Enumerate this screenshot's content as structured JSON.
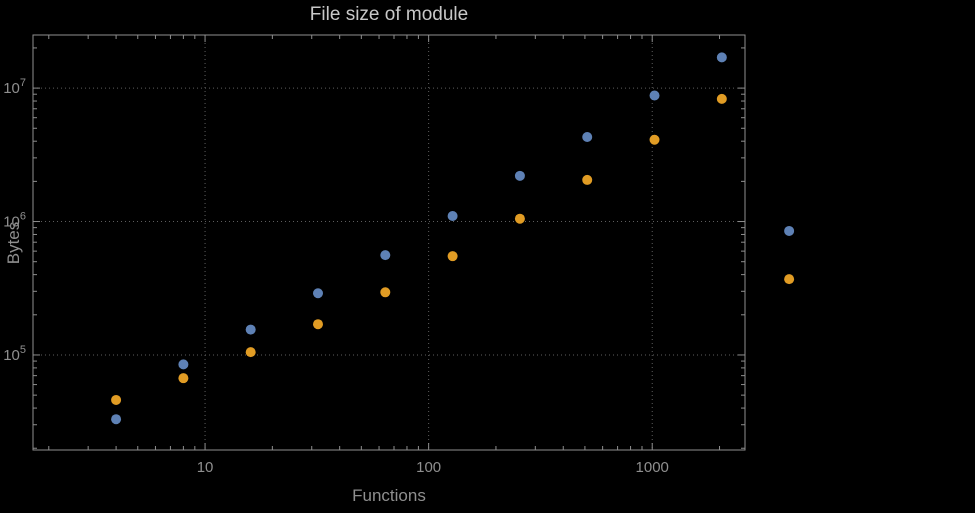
{
  "chart_data": {
    "type": "scatter",
    "title": "File size of module",
    "xlabel": "Functions",
    "ylabel": "Bytes",
    "x_scale": "log",
    "y_scale": "log",
    "xlim": [
      1.7,
      2600
    ],
    "ylim": [
      19400,
      25000000
    ],
    "grid": true,
    "legend": "none",
    "x_ticks": [
      {
        "value": 10,
        "label": "10"
      },
      {
        "value": 100,
        "label": "100"
      },
      {
        "value": 1000,
        "label": "1000"
      }
    ],
    "y_ticks": [
      {
        "value": 100000,
        "label": "10^5"
      },
      {
        "value": 1000000,
        "label": "10^6"
      },
      {
        "value": 10000000,
        "label": "10^7"
      }
    ],
    "x": [
      4,
      8,
      16,
      32,
      64,
      128,
      256,
      512,
      1024,
      2048,
      4096
    ],
    "series": [
      {
        "name": "series-1-blue",
        "color": "#5e81b5",
        "values": [
          33000,
          85000,
          155000,
          290000,
          560000,
          1100000,
          2200000,
          4300000,
          8800000,
          17000000,
          850000
        ]
      },
      {
        "name": "series-2-orange",
        "color": "#e19c24",
        "values": [
          46000,
          67000,
          105000,
          170000,
          295000,
          550000,
          1050000,
          2050000,
          4100000,
          8300000,
          370000
        ]
      }
    ]
  },
  "colors": {
    "background": "#000000",
    "frame": "#8f8f8f",
    "grid": "#5e5e5e",
    "tick_text": "#8f8f8f",
    "title_text": "#c8c8c8"
  }
}
